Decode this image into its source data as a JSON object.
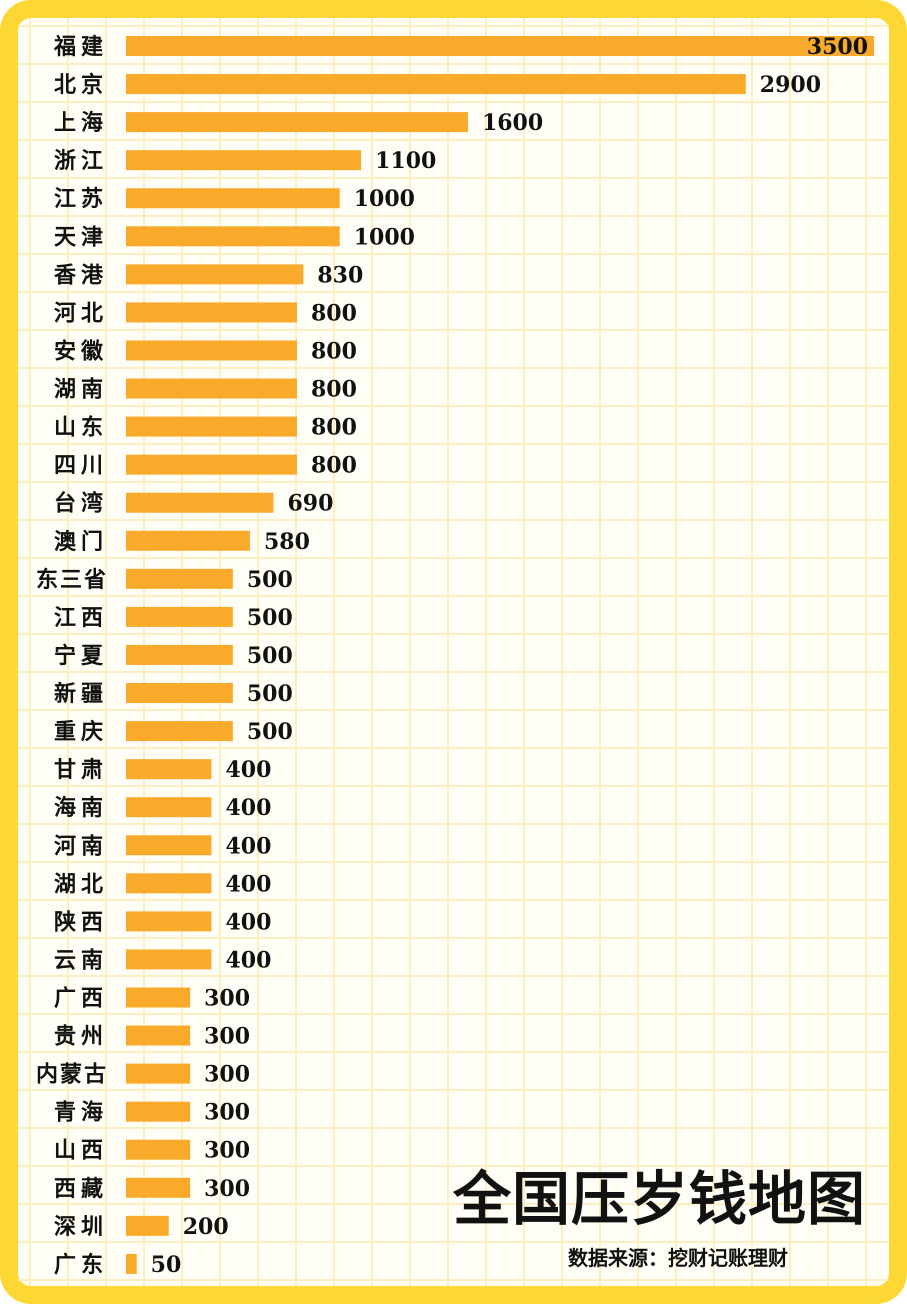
{
  "colors": {
    "frame": "#FDD835",
    "panel": "#FFFEF6",
    "grid": "#FBEFC2",
    "bar": "#F9AA2B",
    "text": "#111111"
  },
  "chart_data": {
    "type": "bar",
    "orientation": "horizontal",
    "title": "全国压岁钱地图",
    "source": "数据来源：挖财记账理财",
    "categories": [
      "福建",
      "北京",
      "上海",
      "浙江",
      "江苏",
      "天津",
      "香港",
      "河北",
      "安徽",
      "湖南",
      "山东",
      "四川",
      "台湾",
      "澳门",
      "东三省",
      "江西",
      "宁夏",
      "新疆",
      "重庆",
      "甘肃",
      "海南",
      "河南",
      "湖北",
      "陕西",
      "云南",
      "广西",
      "贵州",
      "内蒙古",
      "青海",
      "山西",
      "西藏",
      "深圳",
      "广东"
    ],
    "values": [
      3500,
      2900,
      1600,
      1100,
      1000,
      1000,
      830,
      800,
      800,
      800,
      800,
      800,
      690,
      580,
      500,
      500,
      500,
      500,
      500,
      400,
      400,
      400,
      400,
      400,
      400,
      300,
      300,
      300,
      300,
      300,
      300,
      200,
      50
    ],
    "xlim": [
      0,
      3500
    ],
    "grid": true,
    "legend": "none"
  }
}
